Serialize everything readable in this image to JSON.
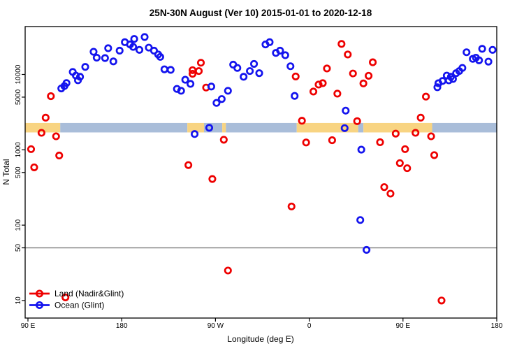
{
  "title": "25N-30N August (Ver 10)   2015-01-01 to 2020-12-18",
  "colors": {
    "land_series": "#EE0000",
    "ocean_series": "#1414EE",
    "band_land": "#F8D482",
    "band_ocean": "#A9BDD9",
    "reference_line": "#808080",
    "axis": "#000000"
  },
  "legend": {
    "items": [
      {
        "label": "Land (Nadir&Glint)",
        "color": "#EE0000"
      },
      {
        "label": "Ocean (Glint)",
        "color": "#1414EE"
      }
    ]
  },
  "chart_data": {
    "type": "scatter",
    "title": "25N-30N August (Ver 10)   2015-01-01 to 2020-12-18",
    "xlabel": "Longitude (deg E)",
    "ylabel": "N Total",
    "y_scale": "log",
    "y_ticks": [
      10,
      50,
      100,
      500,
      1000,
      5000,
      10000
    ],
    "y_range": [
      8,
      50000
    ],
    "x_axis_note": "axis spans 450 deg starting at 90E; values are deg-east position along axis (270=90W, 360=0, 450=90E, 540=180)",
    "x_ticks": [
      {
        "value": 90,
        "label": "90 E"
      },
      {
        "value": 180,
        "label": "180"
      },
      {
        "value": 270,
        "label": "90 W"
      },
      {
        "value": 360,
        "label": "0"
      },
      {
        "value": 450,
        "label": "90 E"
      },
      {
        "value": 540,
        "label": "180"
      }
    ],
    "reference_line_y": 50,
    "map_band": {
      "description": "land/ocean strip for 25N-30N drawn across plot",
      "value_range": [
        1700,
        2270
      ],
      "segments": [
        {
          "from": 87,
          "to": 121,
          "surface": "land"
        },
        {
          "from": 121,
          "to": 243,
          "surface": "ocean"
        },
        {
          "from": 243,
          "to": 259,
          "surface": "land"
        },
        {
          "from": 259,
          "to": 276.5,
          "surface": "ocean"
        },
        {
          "from": 276.5,
          "to": 280,
          "surface": "land"
        },
        {
          "from": 280,
          "to": 348,
          "surface": "ocean"
        },
        {
          "from": 348,
          "to": 407,
          "surface": "land"
        },
        {
          "from": 407,
          "to": 412,
          "surface": "ocean"
        },
        {
          "from": 412,
          "to": 478,
          "surface": "land"
        },
        {
          "from": 478,
          "to": 540,
          "surface": "ocean"
        }
      ]
    },
    "series": [
      {
        "name": "Land (Nadir&Glint)",
        "color": "#EE0000",
        "points": [
          [
            112,
            5150
          ],
          [
            107,
            2670
          ],
          [
            103,
            1680
          ],
          [
            117,
            1510
          ],
          [
            93,
            1020
          ],
          [
            120,
            840
          ],
          [
            96,
            585
          ],
          [
            126,
            11
          ],
          [
            248,
            11400
          ],
          [
            248,
            10200
          ],
          [
            244,
            627
          ],
          [
            256,
            14300
          ],
          [
            254,
            11100
          ],
          [
            261,
            6700
          ],
          [
            278,
            1360
          ],
          [
            267,
            410
          ],
          [
            282,
            25
          ],
          [
            391,
            25400
          ],
          [
            397,
            18400
          ],
          [
            377,
            12000
          ],
          [
            402,
            10300
          ],
          [
            417,
            9600
          ],
          [
            347,
            9400
          ],
          [
            412,
            7600
          ],
          [
            369,
            7340
          ],
          [
            373,
            7660
          ],
          [
            364,
            5930
          ],
          [
            387,
            5560
          ],
          [
            353,
            2430
          ],
          [
            406,
            2400
          ],
          [
            357,
            1250
          ],
          [
            382,
            1340
          ],
          [
            343,
            177
          ],
          [
            421,
            14500
          ],
          [
            472,
            5080
          ],
          [
            467,
            2670
          ],
          [
            462,
            1680
          ],
          [
            443,
            1640
          ],
          [
            428,
            1260
          ],
          [
            477,
            1510
          ],
          [
            452,
            1020
          ],
          [
            480,
            850
          ],
          [
            447,
            665
          ],
          [
            454,
            570
          ],
          [
            432,
            320
          ],
          [
            438,
            262
          ],
          [
            487,
            10
          ]
        ]
      },
      {
        "name": "Ocean (Glint)",
        "color": "#1414EE",
        "points": [
          [
            167,
            22300
          ],
          [
            153,
            20000
          ],
          [
            156,
            16700
          ],
          [
            164,
            16500
          ],
          [
            145,
            12600
          ],
          [
            133,
            10800
          ],
          [
            136,
            9660
          ],
          [
            140,
            9310
          ],
          [
            138,
            8370
          ],
          [
            127,
            7690
          ],
          [
            125,
            7010
          ],
          [
            122,
            6520
          ],
          [
            172,
            14900
          ],
          [
            178,
            20700
          ],
          [
            183,
            26800
          ],
          [
            188,
            25000
          ],
          [
            192,
            29600
          ],
          [
            191,
            23200
          ],
          [
            202,
            31400
          ],
          [
            197,
            21200
          ],
          [
            206,
            22700
          ],
          [
            211,
            20700
          ],
          [
            215,
            18400
          ],
          [
            217,
            17100
          ],
          [
            221,
            11700
          ],
          [
            227,
            11500
          ],
          [
            241,
            8500
          ],
          [
            246,
            7500
          ],
          [
            233,
            6430
          ],
          [
            237,
            6070
          ],
          [
            250,
            1620
          ],
          [
            318,
            25000
          ],
          [
            322,
            26800
          ],
          [
            328,
            19300
          ],
          [
            332,
            20700
          ],
          [
            337,
            18000
          ],
          [
            287,
            13500
          ],
          [
            291,
            12200
          ],
          [
            307,
            13800
          ],
          [
            303,
            11100
          ],
          [
            297,
            9310
          ],
          [
            312,
            10400
          ],
          [
            266,
            6910
          ],
          [
            282,
            6070
          ],
          [
            276,
            4720
          ],
          [
            271,
            4190
          ],
          [
            264,
            1960
          ],
          [
            342,
            12850
          ],
          [
            346,
            5190
          ],
          [
            395,
            3310
          ],
          [
            394,
            1940
          ],
          [
            410,
            1005
          ],
          [
            409,
            117
          ],
          [
            415,
            47
          ],
          [
            484,
            7640
          ],
          [
            483,
            6760
          ],
          [
            488,
            8200
          ],
          [
            492,
            9660
          ],
          [
            496,
            9310
          ],
          [
            501,
            10400
          ],
          [
            504,
            11100
          ],
          [
            494,
            8340
          ],
          [
            498,
            8710
          ],
          [
            526,
            21900
          ],
          [
            536,
            21200
          ],
          [
            511,
            19700
          ],
          [
            520,
            16700
          ],
          [
            523,
            15400
          ],
          [
            517,
            16100
          ],
          [
            532,
            14800
          ],
          [
            507,
            12200
          ]
        ]
      }
    ]
  }
}
